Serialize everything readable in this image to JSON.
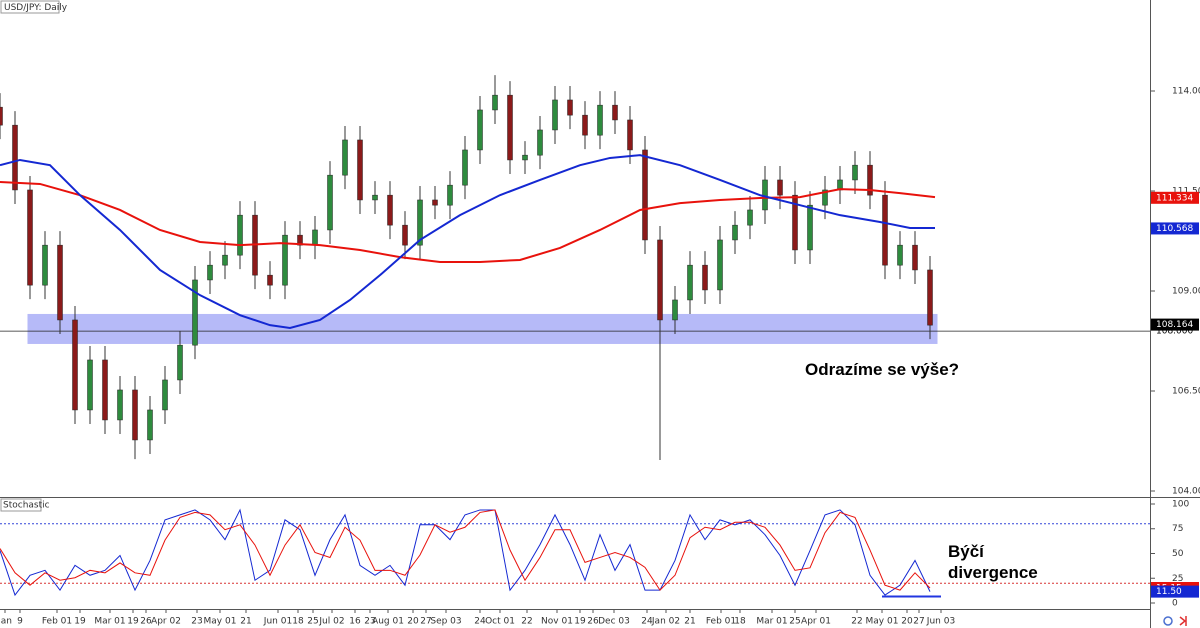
{
  "chart_data": [
    {
      "type": "candlestick",
      "title": "USD/JPY: Daily",
      "up_color": "#2e8b3e",
      "down_color": "#8b1a1a",
      "x": [
        0,
        6,
        12,
        18,
        24,
        30,
        36,
        42,
        48,
        54,
        60,
        66,
        72,
        78,
        84,
        90,
        96,
        102,
        108,
        114,
        120,
        126,
        132,
        138,
        144,
        150,
        156,
        162,
        168,
        174,
        180,
        186,
        192,
        198,
        204,
        210,
        216,
        222,
        228,
        234,
        240,
        246,
        252,
        258,
        264,
        270,
        276,
        282,
        288,
        294,
        300,
        306,
        312,
        318,
        324,
        330,
        336,
        342,
        348,
        354,
        360,
        366,
        372
      ],
      "open": [
        113.6,
        113.15,
        111.53,
        109.15,
        110.15,
        108.28,
        106.03,
        107.28,
        105.78,
        106.53,
        105.28,
        106.03,
        106.78,
        107.65,
        109.28,
        109.65,
        109.9,
        110.9,
        109.4,
        109.15,
        110.4,
        110.15,
        110.53,
        111.9,
        112.78,
        111.28,
        111.4,
        110.65,
        110.15,
        111.28,
        111.15,
        111.65,
        112.53,
        113.53,
        113.9,
        112.28,
        112.4,
        113.03,
        113.78,
        113.4,
        112.9,
        113.65,
        113.28,
        112.53,
        110.28,
        108.28,
        108.78,
        109.65,
        109.03,
        110.28,
        110.65,
        111.03,
        111.78,
        111.4,
        110.03,
        111.15,
        111.53,
        111.78,
        112.15,
        111.4,
        109.65,
        110.15,
        109.53
      ],
      "high": [
        113.95,
        113.5,
        111.88,
        110.5,
        110.5,
        108.63,
        107.63,
        107.63,
        106.88,
        106.88,
        106.38,
        107.13,
        108.0,
        109.63,
        110.0,
        110.25,
        111.25,
        111.25,
        109.75,
        110.75,
        110.75,
        110.88,
        112.25,
        113.13,
        113.13,
        111.75,
        111.75,
        111.0,
        111.63,
        111.63,
        112.0,
        112.88,
        113.88,
        114.4,
        114.25,
        112.75,
        113.38,
        114.13,
        114.13,
        113.75,
        114.0,
        114.0,
        113.63,
        112.88,
        110.63,
        109.13,
        110.0,
        110.0,
        110.63,
        111.0,
        111.38,
        112.13,
        112.13,
        111.75,
        111.5,
        111.88,
        112.13,
        112.5,
        112.5,
        111.75,
        110.5,
        110.5,
        109.88
      ],
      "low": [
        112.8,
        111.18,
        108.8,
        108.8,
        107.93,
        105.68,
        105.68,
        105.43,
        105.43,
        104.8,
        104.93,
        105.68,
        106.43,
        107.3,
        108.93,
        109.3,
        109.55,
        109.05,
        108.8,
        108.8,
        109.8,
        109.8,
        110.18,
        111.55,
        110.93,
        110.93,
        110.3,
        109.8,
        109.8,
        110.8,
        110.8,
        111.3,
        112.18,
        113.18,
        111.93,
        111.93,
        112.05,
        112.68,
        113.05,
        112.55,
        112.55,
        112.93,
        112.18,
        109.93,
        104.78,
        107.93,
        108.43,
        108.68,
        108.68,
        109.93,
        110.3,
        110.68,
        111.05,
        109.68,
        109.68,
        110.8,
        111.18,
        111.43,
        111.05,
        109.3,
        109.3,
        109.18,
        107.8
      ],
      "close": [
        113.15,
        111.53,
        109.15,
        110.15,
        108.28,
        106.03,
        107.28,
        105.78,
        106.53,
        105.28,
        106.03,
        106.78,
        107.65,
        109.28,
        109.65,
        109.9,
        110.9,
        109.4,
        109.15,
        110.4,
        110.15,
        110.53,
        111.9,
        112.78,
        111.28,
        111.4,
        110.65,
        110.15,
        111.28,
        111.15,
        111.65,
        112.53,
        113.53,
        113.9,
        112.28,
        112.4,
        113.03,
        113.78,
        113.4,
        112.9,
        113.65,
        113.28,
        112.53,
        110.28,
        108.28,
        108.78,
        109.65,
        109.03,
        110.28,
        110.65,
        111.03,
        111.78,
        111.4,
        110.03,
        111.15,
        111.53,
        111.78,
        112.15,
        111.4,
        109.65,
        110.15,
        109.53,
        108.15
      ],
      "series": [
        {
          "color": "#e8120c",
          "last_value": 111.334,
          "x": [
            0,
            16,
            32,
            48,
            64,
            80,
            96,
            112,
            128,
            144,
            160,
            176,
            192,
            208,
            224,
            240,
            256,
            272,
            288,
            304,
            320,
            336,
            348,
            360,
            374
          ],
          "values": [
            111.73,
            111.68,
            111.4,
            111.03,
            110.53,
            110.23,
            110.15,
            110.2,
            110.15,
            110.03,
            109.85,
            109.73,
            109.73,
            109.78,
            110.08,
            110.53,
            111.03,
            111.2,
            111.28,
            111.33,
            111.35,
            111.55,
            111.53,
            111.45,
            111.35
          ]
        },
        {
          "color": "#1428d2",
          "last_value": 110.568,
          "x": [
            0,
            8,
            20,
            32,
            48,
            64,
            80,
            96,
            108,
            116,
            128,
            140,
            152,
            168,
            184,
            200,
            216,
            232,
            244,
            256,
            272,
            288,
            304,
            320,
            336,
            352,
            364,
            374
          ],
          "values": [
            112.15,
            112.28,
            112.15,
            111.4,
            110.53,
            109.53,
            108.9,
            108.4,
            108.15,
            108.08,
            108.28,
            108.78,
            109.4,
            110.28,
            110.9,
            111.4,
            111.78,
            112.15,
            112.33,
            112.4,
            112.15,
            111.78,
            111.4,
            111.15,
            110.9,
            110.73,
            110.58,
            110.58
          ]
        }
      ],
      "zone": [
        107.68,
        108.43
      ],
      "zone_color": "#9ea3f5",
      "zone_x": [
        11,
        375
      ],
      "last_price": 108.164,
      "level": {
        "value": 108.0,
        "label": "108.000"
      },
      "xlim": [
        0,
        460
      ],
      "ylim": [
        103.854,
        116.279
      ],
      "yticks": [
        104.004,
        106.504,
        109.004,
        111.504,
        114.004
      ],
      "xticks": [
        {
          "value": 2,
          "label": "Jan"
        },
        {
          "value": 8,
          "label": "9"
        },
        {
          "value": 22.8,
          "label": "Feb 01"
        },
        {
          "value": 32,
          "label": "19"
        },
        {
          "value": 44,
          "label": "Mar 01"
        },
        {
          "value": 53.2,
          "label": "19"
        },
        {
          "value": 58.4,
          "label": "26"
        },
        {
          "value": 66.4,
          "label": "Apr 02"
        },
        {
          "value": 78.8,
          "label": "23"
        },
        {
          "value": 88,
          "label": "May 01"
        },
        {
          "value": 98.4,
          "label": "21"
        },
        {
          "value": 111.2,
          "label": "Jun 01"
        },
        {
          "value": 119.2,
          "label": "18"
        },
        {
          "value": 125.2,
          "label": "25"
        },
        {
          "value": 132.8,
          "label": "Jul 02"
        },
        {
          "value": 142,
          "label": "16"
        },
        {
          "value": 148,
          "label": "23"
        },
        {
          "value": 155.2,
          "label": "Aug 01"
        },
        {
          "value": 165.2,
          "label": "20"
        },
        {
          "value": 170.4,
          "label": "27"
        },
        {
          "value": 178.4,
          "label": "Sep 03"
        },
        {
          "value": 192,
          "label": "24"
        },
        {
          "value": 200,
          "label": "Oct 01"
        },
        {
          "value": 210.8,
          "label": "22"
        },
        {
          "value": 222.8,
          "label": "Nov 01"
        },
        {
          "value": 232,
          "label": "19"
        },
        {
          "value": 237.2,
          "label": "26"
        },
        {
          "value": 245.6,
          "label": "Dec 03"
        },
        {
          "value": 258.8,
          "label": "24"
        },
        {
          "value": 266.4,
          "label": "Jan 02"
        },
        {
          "value": 276,
          "label": "21"
        },
        {
          "value": 288.4,
          "label": "Feb 01"
        },
        {
          "value": 296,
          "label": "18"
        },
        {
          "value": 308.8,
          "label": "Mar 01"
        },
        {
          "value": 318,
          "label": "25"
        },
        {
          "value": 326.4,
          "label": "Apr 01"
        },
        {
          "value": 342.8,
          "label": "22"
        },
        {
          "value": 352.8,
          "label": "May 01"
        },
        {
          "value": 362.8,
          "label": "20"
        },
        {
          "value": 367.6,
          "label": "27"
        },
        {
          "value": 376.4,
          "label": "Jun 03"
        }
      ],
      "annotations": [
        "Odrazíme se výše?",
        "Býčí divergence"
      ]
    },
    {
      "type": "line",
      "title": "Stochastic",
      "x": [
        0,
        6,
        12,
        18,
        24,
        30,
        36,
        42,
        48,
        54,
        60,
        66,
        72,
        78,
        84,
        90,
        96,
        102,
        108,
        114,
        120,
        126,
        132,
        138,
        144,
        150,
        156,
        162,
        168,
        174,
        180,
        186,
        192,
        198,
        204,
        210,
        216,
        222,
        228,
        234,
        240,
        246,
        252,
        258,
        264,
        270,
        276,
        282,
        288,
        294,
        300,
        306,
        312,
        318,
        324,
        330,
        336,
        342,
        348,
        354,
        360,
        366,
        372
      ],
      "series": [
        {
          "color": "#1428d2",
          "last_label": {
            "value": 11.5,
            "label": "11.50"
          },
          "values": [
            53,
            8,
            28,
            33,
            13,
            38,
            28,
            33,
            48,
            13,
            43,
            84,
            89,
            94,
            84,
            64,
            94,
            23,
            33,
            84,
            74,
            28,
            64,
            89,
            38,
            28,
            38,
            18,
            79,
            79,
            64,
            89,
            94,
            94,
            13,
            33,
            59,
            89,
            59,
            23,
            69,
            33,
            59,
            13,
            13,
            43,
            89,
            64,
            84,
            79,
            84,
            69,
            48,
            18,
            53,
            89,
            94,
            79,
            28,
            8,
            18,
            43,
            11.5
          ]
        },
        {
          "color": "#e8120c",
          "last_label": 15.15,
          "values": [
            55,
            30.5,
            18,
            30.5,
            23,
            25.5,
            33,
            30.5,
            40.5,
            30.5,
            28,
            63.5,
            86.5,
            91.5,
            89,
            74,
            79,
            58.5,
            28,
            58.5,
            79,
            51,
            46,
            76.5,
            63.5,
            33,
            33,
            28,
            48.5,
            79,
            71.5,
            76.5,
            91.5,
            94,
            53.5,
            23,
            46,
            74,
            74,
            41,
            46,
            51,
            46,
            36,
            13,
            28,
            66,
            76.5,
            74,
            81.5,
            81.5,
            76.5,
            58.5,
            33,
            35.5,
            71,
            91.5,
            86.5,
            53.5,
            18,
            13,
            30.5,
            15.15
          ]
        }
      ],
      "levels": [
        {
          "value": 80,
          "color": "#3346d8"
        },
        {
          "value": 20,
          "color": "#d83333"
        }
      ],
      "xlim": [
        0,
        460
      ],
      "ylim": [
        -6.06,
        106.06
      ],
      "yticks": [
        0,
        25,
        50,
        75,
        100
      ]
    }
  ]
}
